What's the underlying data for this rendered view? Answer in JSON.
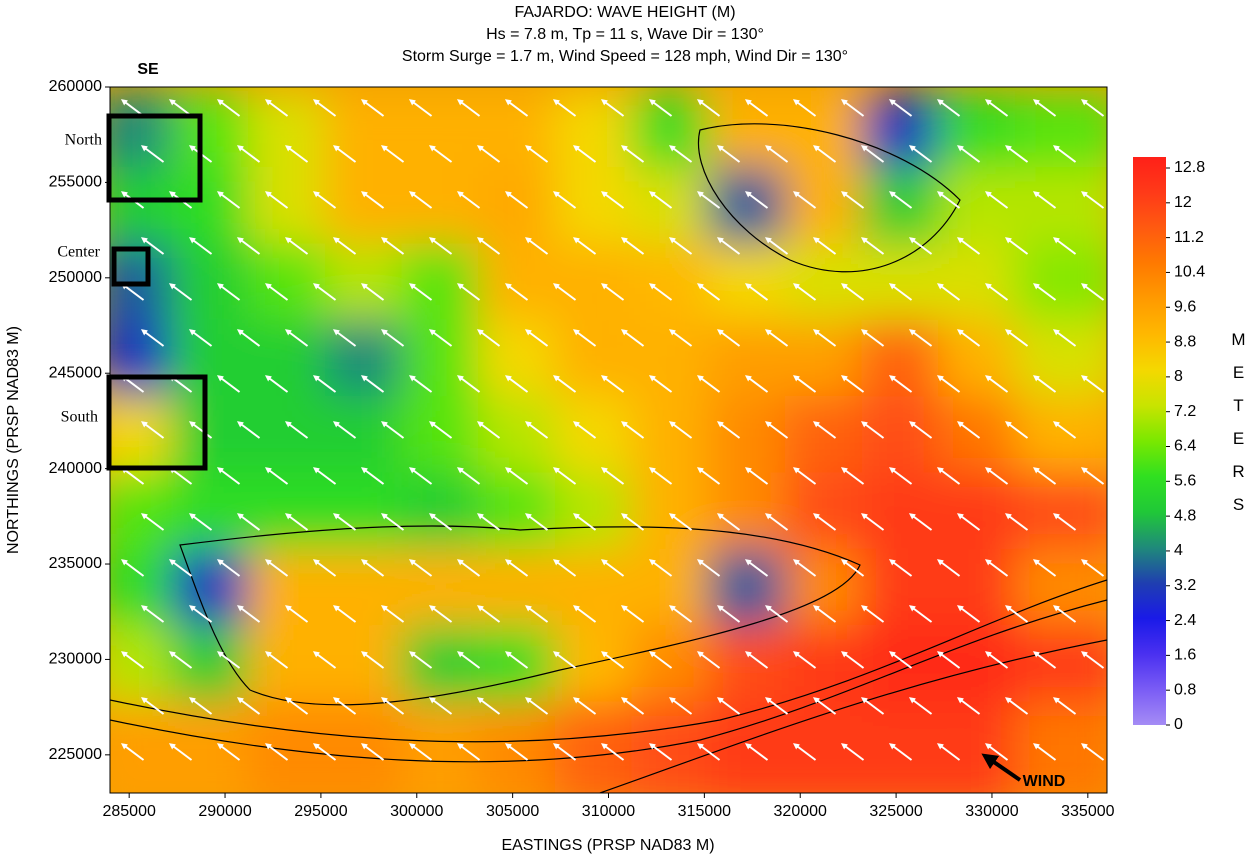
{
  "chart_data": {
    "type": "heatmap",
    "title": "FAJARDO: WAVE HEIGHT (M)",
    "subtitle": [
      "Hs = 7.8 m, Tp = 11 s, Wave Dir = 130°",
      "Storm Surge = 1.7 m, Wind Speed = 128 mph, Wind Dir = 130°"
    ],
    "x_label": "EASTINGS (PRSP NAD83 M)",
    "y_label": "NORTHINGS (PRSP NAD83 M)",
    "colorbar_label": "METERS",
    "annotations": [
      "SE",
      "North",
      "Center",
      "South",
      "WIND"
    ],
    "xlim": [
      284000,
      336000
    ],
    "ylim": [
      223000,
      260000
    ],
    "xticks": [
      285000,
      290000,
      295000,
      300000,
      305000,
      310000,
      315000,
      320000,
      325000,
      330000,
      335000
    ],
    "yticks": [
      225000,
      230000,
      235000,
      240000,
      245000,
      250000,
      255000,
      260000
    ],
    "zlim": [
      0,
      12.8
    ],
    "zticks": [
      0,
      0.8,
      1.6,
      2.4,
      3.2,
      4,
      4.8,
      5.6,
      6.4,
      7.2,
      8,
      8.8,
      9.6,
      10.4,
      11.2,
      12,
      12.8
    ],
    "colorscale": [
      "#a58cf5",
      "#7a5cf5",
      "#4a30f0",
      "#1a1ae8",
      "#1f3fb0",
      "#1f8a7a",
      "#20c838",
      "#30e020",
      "#7ae800",
      "#c8e400",
      "#f4d800",
      "#ffb800",
      "#ff9a00",
      "#ff7a00",
      "#ff5a10",
      "#ff3a18",
      "#ff2018"
    ],
    "x": [
      286000,
      290000,
      294000,
      298000,
      302000,
      306000,
      310000,
      314000,
      318000,
      322000,
      326000,
      330000,
      334000
    ],
    "y": [
      257000,
      253000,
      249000,
      245000,
      241000,
      237000,
      233000,
      229000,
      225000
    ],
    "z": [
      [
        4,
        6,
        7.5,
        9,
        9,
        9,
        8,
        5.5,
        9,
        9,
        3,
        5.5,
        6
      ],
      [
        5,
        5.5,
        7.5,
        9,
        9,
        9.2,
        8,
        7.5,
        3.5,
        9,
        5,
        7,
        7
      ],
      [
        3.5,
        5,
        6,
        7,
        6,
        9,
        9,
        8.8,
        8,
        7.5,
        7.5,
        7.5,
        6.5
      ],
      [
        3,
        5,
        5,
        4,
        6,
        8,
        9,
        9,
        9.5,
        9.5,
        11,
        9,
        7.5
      ],
      [
        8,
        5,
        5,
        5,
        6,
        7,
        8,
        9,
        10,
        11,
        11.5,
        10.5,
        9
      ],
      [
        6,
        5.5,
        5.5,
        5.5,
        5,
        6,
        7,
        9,
        10,
        11.5,
        12,
        12,
        11.5
      ],
      [
        5.5,
        3,
        9,
        9,
        9,
        9,
        9,
        9,
        3.5,
        10,
        12,
        12,
        10
      ],
      [
        7,
        5,
        9,
        9,
        5,
        5.5,
        8.8,
        10,
        11.5,
        12,
        12.5,
        12.5,
        12
      ],
      [
        9.5,
        9.5,
        10,
        10,
        9.5,
        10,
        11,
        11.5,
        12,
        12,
        12,
        12,
        10.5
      ]
    ]
  }
}
